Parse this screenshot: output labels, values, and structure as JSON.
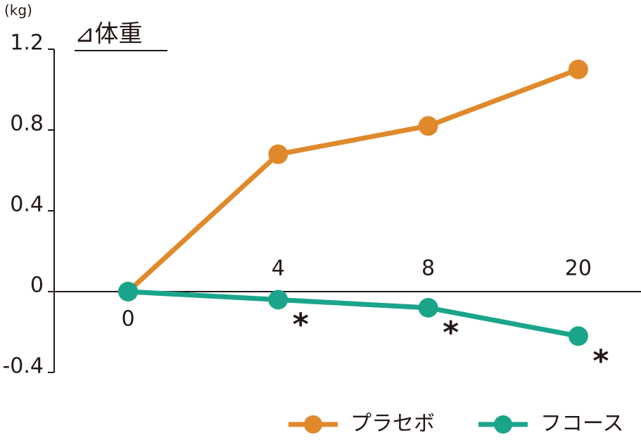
{
  "chart_data": {
    "type": "line",
    "title": "⊿体重",
    "y_unit": "(kg)",
    "categories": [
      "0",
      "4",
      "8",
      "20"
    ],
    "series": [
      {
        "name": "プラセボ",
        "color": "#e0892b",
        "values": [
          0,
          0.68,
          0.82,
          1.1
        ]
      },
      {
        "name": "フコース",
        "color": "#1aa58b",
        "values": [
          0,
          -0.04,
          -0.08,
          -0.22
        ],
        "marks": [
          null,
          "*",
          "*",
          "*"
        ]
      }
    ],
    "ylim": [
      -0.4,
      1.2
    ],
    "yticks": [
      -0.4,
      0,
      0.4,
      0.8,
      1.2
    ],
    "grid": false,
    "legend": "bottom-right"
  }
}
